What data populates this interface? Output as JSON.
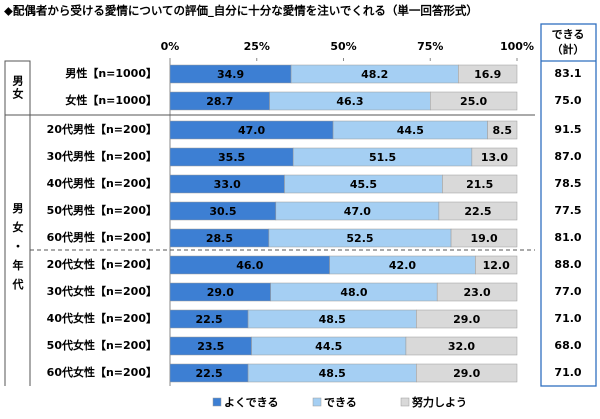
{
  "chart_data": {
    "type": "stacked_bar_horizontal",
    "title": "◆配偶者から受ける愛情についての評価_自分に十分な愛情を注いでくれる（単一回答形式）",
    "categories": [
      "男性【n=1000】",
      "女性【n=1000】",
      "20代男性【n=200】",
      "30代男性【n=200】",
      "40代男性【n=200】",
      "50代男性【n=200】",
      "60代男性【n=200】",
      "20代女性【n=200】",
      "30代女性【n=200】",
      "40代女性【n=200】",
      "50代女性【n=200】",
      "60代女性【n=200】"
    ],
    "group_labels": [
      "男女",
      "男女・年代"
    ],
    "series": [
      {
        "name": "よくできる",
        "color": "#3d7fd3",
        "values": [
          34.9,
          28.7,
          47.0,
          35.5,
          33.0,
          30.5,
          28.5,
          46.0,
          29.0,
          22.5,
          23.5,
          22.5
        ],
        "value_labels": [
          "34.9",
          "28.7",
          "47.0",
          "35.5",
          "33.0",
          "30.5",
          "28.5",
          "46.0",
          "29.0",
          "22.5",
          "23.5",
          "22.5"
        ]
      },
      {
        "name": "できる",
        "color": "#a5cff3",
        "values": [
          48.2,
          46.3,
          44.5,
          51.5,
          45.5,
          47.0,
          52.5,
          42.0,
          48.0,
          48.5,
          44.5,
          48.5
        ],
        "value_labels": [
          "48.2",
          "46.3",
          "44.5",
          "51.5",
          "45.5",
          "47.0",
          "52.5",
          "42.0",
          "48.0",
          "48.5",
          "44.5",
          "48.5"
        ]
      },
      {
        "name": "努力しよう",
        "color": "#d9d9d9",
        "values": [
          16.9,
          25.0,
          8.5,
          13.0,
          21.5,
          22.5,
          19.0,
          12.0,
          23.0,
          29.0,
          32.0,
          29.0
        ],
        "value_labels": [
          "16.9",
          "25.0",
          "8.5",
          "13.0",
          "21.5",
          "22.5",
          "19.0",
          "12.0",
          "23.0",
          "29.0",
          "32.0",
          "29.0"
        ]
      }
    ],
    "totals": {
      "label": [
        "できる",
        "（計）"
      ],
      "values": [
        83.1,
        75.0,
        91.5,
        87.0,
        78.5,
        77.5,
        81.0,
        88.0,
        77.0,
        71.0,
        68.0,
        71.0
      ],
      "value_labels": [
        "83.1",
        "75.0",
        "91.5",
        "87.0",
        "78.5",
        "77.5",
        "81.0",
        "88.0",
        "77.0",
        "71.0",
        "68.0",
        "71.0"
      ]
    },
    "xlim": [
      0,
      100
    ],
    "xticks": [
      {
        "value": 0,
        "label": "0%"
      },
      {
        "value": 25,
        "label": "25%"
      },
      {
        "value": 50,
        "label": "50%"
      },
      {
        "value": 75,
        "label": "75%"
      },
      {
        "value": 100,
        "label": "100%"
      }
    ],
    "legend": "bottom"
  }
}
